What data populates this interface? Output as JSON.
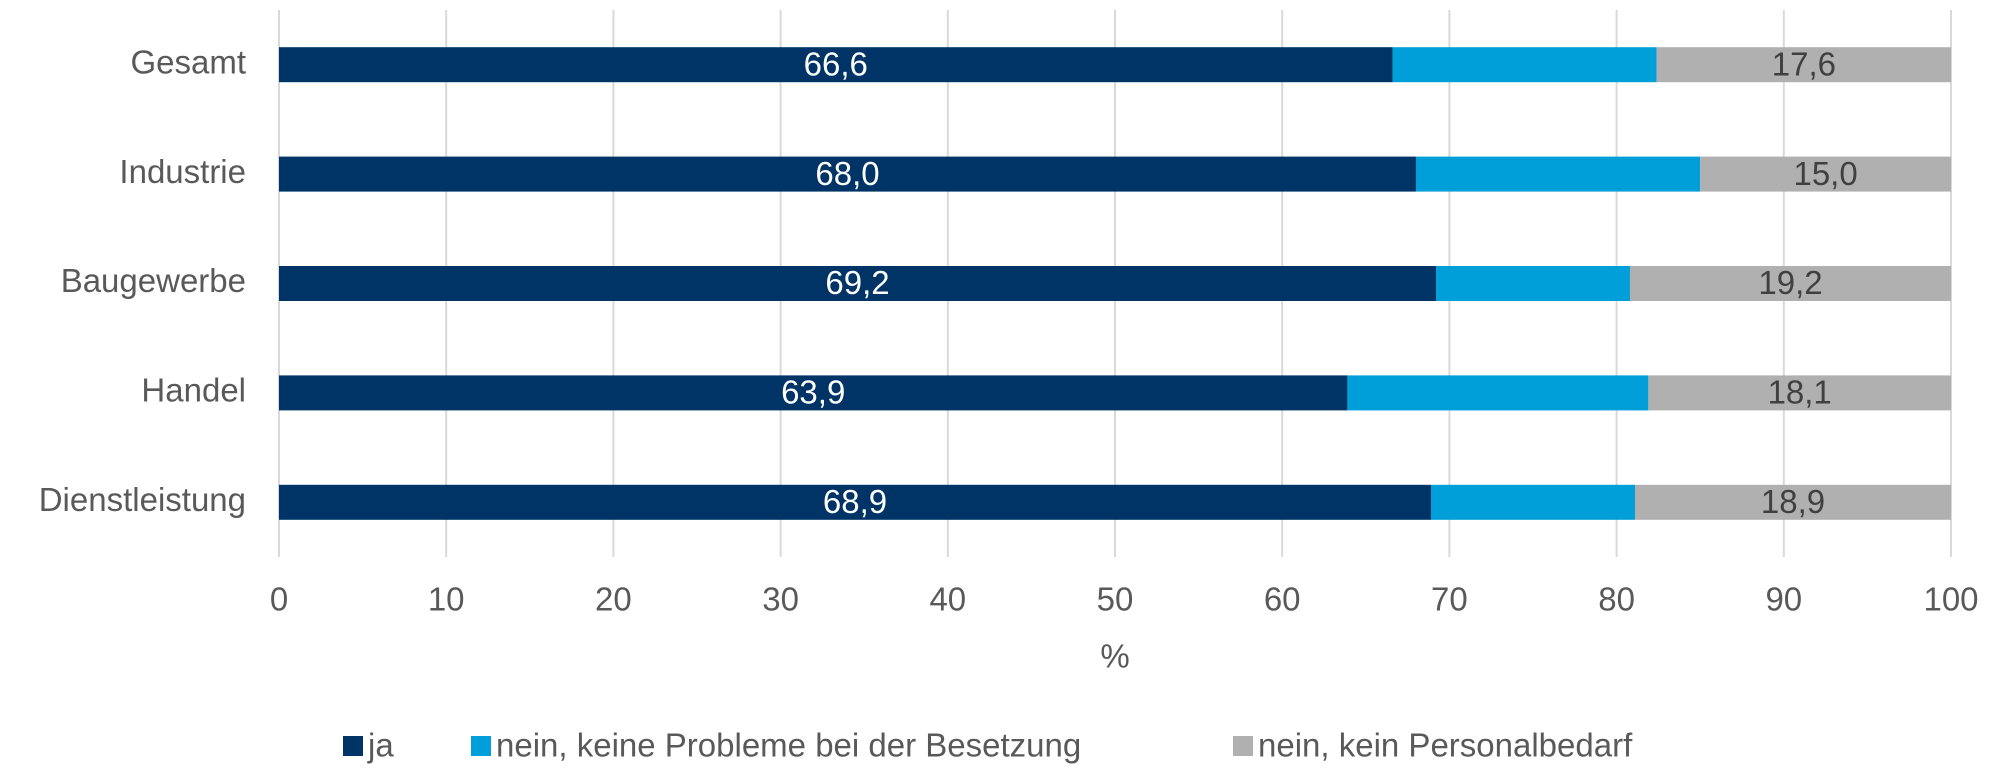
{
  "chart_data": {
    "type": "stacked-barh",
    "categories": [
      "Gesamt",
      "Industrie",
      "Baugewerbe",
      "Handel",
      "Dienstleistung"
    ],
    "series": [
      {
        "name": "ja",
        "color": "#003466",
        "values": [
          66.6,
          68.0,
          69.2,
          63.9,
          68.9
        ],
        "value_labels": [
          "66,6",
          "68,0",
          "69,2",
          "63,9",
          "68,9"
        ],
        "label_color": "#ffffff"
      },
      {
        "name": "nein, keine Probleme bei der Besetzung",
        "color": "#009fda",
        "values": [
          15.8,
          17.0,
          11.6,
          18.0,
          12.2
        ]
      },
      {
        "name": "nein, kein Personalbedarf",
        "color": "#b0b0b0",
        "values": [
          17.6,
          15.0,
          19.2,
          18.1,
          18.9
        ],
        "value_labels": [
          "17,6",
          "15,0",
          "19,2",
          "18,1",
          "18,9"
        ],
        "label_color": "#404040"
      }
    ],
    "xlabel": "%",
    "xlim": [
      0,
      100
    ],
    "xticks": [
      0,
      10,
      20,
      30,
      40,
      50,
      60,
      70,
      80,
      90,
      100
    ],
    "grid": true,
    "legend": "bottom"
  }
}
